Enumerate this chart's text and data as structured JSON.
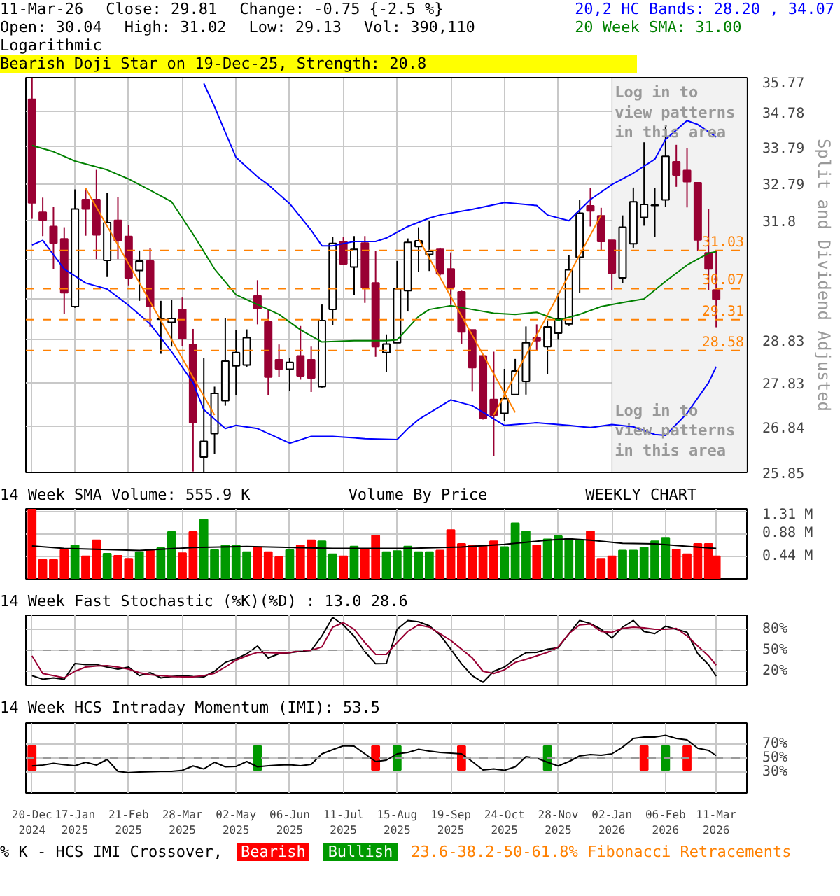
{
  "chart_data": [
    {
      "type": "candlestick",
      "title": "Bearish Doji Star on 19-Dec-25, Strength: 20.8",
      "ylabel": "Split and Dividend Adjusted",
      "annotations": [
        "11-Mar-26",
        "Close: 29.81",
        "Change: -0.75 {-2.5 %}",
        "Open: 30.04",
        "High: 31.02",
        "Low: 29.13",
        "Vol: 390,110",
        "Logarithmic",
        {
          "text": "Log in to view patterns in this area",
          "x": "2026-01-02",
          "y": 35.6
        },
        {
          "text": "Log in to view patterns in this area",
          "x": "2026-01-02",
          "y": 27.4
        }
      ],
      "x": [
        "2024-12-20",
        "2024-12-27",
        "2025-01-03",
        "2025-01-10",
        "2025-01-17",
        "2025-01-24",
        "2025-01-31",
        "2025-02-07",
        "2025-02-14",
        "2025-02-21",
        "2025-02-28",
        "2025-03-07",
        "2025-03-14",
        "2025-03-21",
        "2025-03-28",
        "2025-04-04",
        "2025-04-11",
        "2025-04-18",
        "2025-04-25",
        "2025-05-02",
        "2025-05-09",
        "2025-05-16",
        "2025-05-23",
        "2025-05-30",
        "2025-06-06",
        "2025-06-13",
        "2025-06-20",
        "2025-06-27",
        "2025-07-04",
        "2025-07-11",
        "2025-07-18",
        "2025-07-25",
        "2025-08-01",
        "2025-08-08",
        "2025-08-15",
        "2025-08-22",
        "2025-08-29",
        "2025-09-05",
        "2025-09-12",
        "2025-09-19",
        "2025-09-26",
        "2025-10-03",
        "2025-10-10",
        "2025-10-17",
        "2025-10-24",
        "2025-10-31",
        "2025-11-07",
        "2025-11-14",
        "2025-11-21",
        "2025-11-28",
        "2025-12-05",
        "2025-12-12",
        "2025-12-19",
        "2025-12-26",
        "2026-01-02",
        "2026-01-09",
        "2026-01-16",
        "2026-01-23",
        "2026-01-30",
        "2026-02-06",
        "2026-02-13",
        "2026-02-20",
        "2026-02-27",
        "2026-03-06",
        "2026-03-11"
      ],
      "ohlc": [
        [
          35.14,
          35.76,
          31.85,
          32.27
        ],
        [
          32.02,
          32.41,
          31.4,
          31.82
        ],
        [
          31.65,
          32.16,
          30.56,
          31.22
        ],
        [
          31.33,
          31.63,
          29.46,
          29.97
        ],
        [
          29.63,
          32.63,
          29.6,
          32.11
        ],
        [
          32.36,
          32.66,
          31.41,
          32.11
        ],
        [
          32.36,
          33.16,
          30.81,
          31.43
        ],
        [
          30.78,
          32.53,
          30.36,
          31.75
        ],
        [
          31.81,
          32.43,
          30.81,
          31.28
        ],
        [
          31.39,
          31.69,
          30.15,
          30.34
        ],
        [
          30.52,
          31.03,
          29.77,
          30.76
        ],
        [
          30.76,
          31.09,
          29.14,
          29.63
        ],
        [
          29.32,
          29.77,
          28.5,
          29.33
        ],
        [
          29.25,
          29.79,
          28.67,
          29.34
        ],
        [
          29.56,
          29.85,
          28.69,
          28.86
        ],
        [
          28.72,
          29.09,
          25.87,
          26.93
        ],
        [
          26.18,
          28.4,
          25.85,
          26.52
        ],
        [
          26.69,
          27.74,
          26.24,
          27.59
        ],
        [
          27.42,
          29.35,
          27.31,
          28.33
        ],
        [
          28.22,
          29.07,
          27.55,
          28.53
        ],
        [
          28.24,
          29.08,
          28.2,
          28.88
        ],
        [
          29.89,
          30.28,
          29.2,
          29.58
        ],
        [
          29.26,
          29.56,
          27.55,
          27.96
        ],
        [
          28.36,
          28.72,
          27.96,
          28.15
        ],
        [
          28.14,
          28.4,
          27.65,
          28.3
        ],
        [
          28.45,
          29.16,
          27.9,
          27.99
        ],
        [
          28.36,
          28.67,
          27.62,
          27.94
        ],
        [
          27.74,
          29.68,
          27.72,
          29.29
        ],
        [
          29.56,
          31.37,
          29.18,
          31.21
        ],
        [
          31.26,
          31.37,
          30.66,
          30.69
        ],
        [
          30.61,
          31.4,
          29.92,
          31.06
        ],
        [
          31.22,
          31.4,
          29.72,
          30.1
        ],
        [
          30.21,
          31.01,
          28.43,
          28.67
        ],
        [
          28.53,
          28.96,
          28.07,
          28.73
        ],
        [
          28.76,
          30.76,
          28.76,
          30.07
        ],
        [
          30.02,
          31.34,
          29.51,
          31.24
        ],
        [
          31.13,
          31.63,
          30.48,
          31.28
        ],
        [
          30.93,
          31.8,
          30.51,
          31.01
        ],
        [
          31.06,
          31.1,
          30.4,
          30.44
        ],
        [
          30.56,
          30.98,
          29.67,
          30.11
        ],
        [
          29.99,
          30.02,
          28.74,
          29.02
        ],
        [
          29.07,
          29.07,
          27.63,
          28.18
        ],
        [
          28.45,
          28.48,
          27.0,
          27.03
        ],
        [
          27.45,
          28.55,
          26.2,
          27.1
        ],
        [
          27.14,
          28.15,
          26.97,
          27.47
        ],
        [
          27.56,
          28.38,
          27.56,
          28.1
        ],
        [
          27.86,
          29.15,
          27.56,
          28.76
        ],
        [
          28.88,
          29.2,
          28.58,
          28.81
        ],
        [
          28.67,
          29.3,
          28.03,
          29.14
        ],
        [
          28.99,
          29.96,
          28.83,
          29.33
        ],
        [
          29.21,
          30.91,
          29.16,
          30.54
        ],
        [
          30.86,
          32.36,
          29.97,
          32.0
        ],
        [
          32.19,
          32.66,
          31.65,
          32.06
        ],
        [
          31.93,
          32.14,
          31.01,
          31.26
        ],
        [
          31.29,
          31.29,
          30.04,
          30.46
        ],
        [
          30.34,
          31.94,
          30.21,
          31.63
        ],
        [
          31.2,
          32.68,
          31.1,
          32.3
        ],
        [
          31.89,
          33.92,
          31.67,
          32.23
        ],
        [
          32.2,
          32.66,
          31.37,
          32.21
        ],
        [
          32.35,
          34.34,
          32.17,
          33.53
        ],
        [
          33.38,
          33.85,
          32.7,
          33.02
        ],
        [
          33.14,
          33.75,
          32.15,
          32.84
        ],
        [
          32.81,
          32.81,
          31.01,
          31.3
        ],
        [
          30.97,
          32.11,
          30.04,
          30.56
        ],
        [
          30.04,
          31.02,
          29.13,
          29.81
        ]
      ],
      "series": [
        {
          "type": "line",
          "name": "20,2 HC Bands: 28.20 , 34.07",
          "color": "#0000ff",
          "x": [
            "2025-04-11",
            "2025-04-18",
            "2025-04-25",
            "2025-05-02",
            "2025-05-16",
            "2025-05-23",
            "2025-06-06",
            "2025-06-20",
            "2025-06-27",
            "2025-07-04",
            "2025-07-18",
            "2025-08-01",
            "2025-08-08",
            "2025-08-22",
            "2025-09-05",
            "2025-09-12",
            "2025-10-03",
            "2025-10-24",
            "2025-11-14",
            "2025-11-21",
            "2025-12-05",
            "2025-12-19",
            "2026-01-02",
            "2026-01-16",
            "2026-01-30",
            "2026-02-06",
            "2026-02-20",
            "2026-02-27",
            "2026-03-11"
          ],
          "values": [
            35.6,
            34.93,
            34.2,
            33.5,
            32.97,
            32.76,
            32.25,
            31.55,
            31.15,
            31.15,
            31.26,
            31.26,
            31.35,
            31.65,
            31.87,
            31.95,
            32.1,
            32.28,
            32.2,
            31.95,
            31.8,
            32.36,
            32.76,
            33.07,
            33.45,
            34.0,
            34.53,
            34.42,
            34.07
          ]
        },
        {
          "type": "line",
          "color": "#0000ff",
          "x": [
            "2024-12-20",
            "2024-12-27",
            "2025-01-10",
            "2025-01-24",
            "2025-02-07",
            "2025-02-21",
            "2025-03-07",
            "2025-03-21",
            "2025-04-04",
            "2025-04-11",
            "2025-04-25",
            "2025-05-02",
            "2025-05-16",
            "2025-06-06",
            "2025-06-20",
            "2025-07-04",
            "2025-07-25",
            "2025-08-15",
            "2025-08-22",
            "2025-08-29",
            "2025-09-19",
            "2025-10-03",
            "2025-10-24",
            "2025-11-14",
            "2025-12-05",
            "2025-12-19",
            "2026-01-02",
            "2026-01-16",
            "2026-01-30",
            "2026-02-06",
            "2026-02-20",
            "2026-03-06",
            "2026-03-11"
          ],
          "values": [
            31.17,
            31.29,
            30.56,
            30.21,
            30.06,
            29.66,
            29.21,
            28.55,
            27.83,
            27.22,
            26.8,
            26.87,
            26.8,
            26.48,
            26.63,
            26.63,
            26.58,
            26.56,
            26.8,
            27.0,
            27.44,
            27.31,
            26.87,
            26.93,
            26.87,
            26.82,
            26.89,
            26.84,
            26.67,
            26.65,
            27.14,
            27.83,
            28.2
          ]
        },
        {
          "type": "line",
          "name": "20 Week SMA: 31.00",
          "color": "#008000",
          "x": [
            "2024-12-20",
            "2025-01-03",
            "2025-01-17",
            "2025-02-07",
            "2025-02-21",
            "2025-03-07",
            "2025-03-21",
            "2025-04-04",
            "2025-04-18",
            "2025-05-02",
            "2025-05-16",
            "2025-05-30",
            "2025-06-13",
            "2025-06-27",
            "2025-07-18",
            "2025-08-08",
            "2025-08-15",
            "2025-08-29",
            "2025-09-05",
            "2025-09-19",
            "2025-10-03",
            "2025-10-17",
            "2025-10-31",
            "2025-11-14",
            "2025-11-28",
            "2025-12-12",
            "2025-12-26",
            "2026-01-09",
            "2026-01-23",
            "2026-02-06",
            "2026-02-20",
            "2026-03-06",
            "2026-03-11"
          ],
          "values": [
            33.83,
            33.66,
            33.4,
            33.16,
            32.91,
            32.61,
            32.3,
            31.45,
            30.56,
            29.92,
            29.68,
            29.44,
            29.07,
            28.78,
            28.81,
            28.81,
            28.83,
            29.39,
            29.56,
            29.65,
            29.56,
            29.47,
            29.44,
            29.49,
            29.3,
            29.44,
            29.63,
            29.73,
            29.82,
            30.25,
            30.66,
            30.96,
            31.0
          ]
        },
        {
          "type": "line",
          "color": "#ff8000",
          "x": [
            "2025-01-24",
            "2025-04-18"
          ],
          "values": [
            32.66,
            27.1
          ]
        },
        {
          "type": "line",
          "color": "#ff8000",
          "x": [
            "2025-08-29",
            "2025-10-31"
          ],
          "values": [
            31.33,
            27.16
          ]
        },
        {
          "type": "line",
          "color": "#ff8000",
          "x": [
            "2025-10-17",
            "2025-12-26"
          ],
          "values": [
            27.1,
            31.95
          ]
        }
      ],
      "ref_lines": [
        {
          "axis": "y",
          "value": 31.03,
          "label": "31.03",
          "color": "#ff8000",
          "line_style": "dashed"
        },
        {
          "axis": "y",
          "value": 30.07,
          "label": "30.07",
          "color": "#ff8000",
          "line_style": "dashed"
        },
        {
          "axis": "y",
          "value": 29.31,
          "label": "29.31",
          "color": "#ff8000",
          "line_style": "dashed"
        },
        {
          "axis": "y",
          "value": 28.58,
          "label": "28.58",
          "color": "#ff8000",
          "line_style": "dashed"
        }
      ],
      "bands": [
        {
          "axis": "x",
          "from": "2026-01-02",
          "to": "2026-03-31",
          "color": "#f2f2f2"
        }
      ],
      "xlim": [
        "2024-12-16",
        "2026-03-31"
      ],
      "xticks": [
        {
          "value": "2024-12-20",
          "label": null
        },
        {
          "value": "2025-01-17",
          "label": null
        },
        {
          "value": "2025-02-21",
          "label": null
        },
        {
          "value": "2025-03-28",
          "label": null
        },
        {
          "value": "2025-05-02",
          "label": null
        },
        {
          "value": "2025-06-06",
          "label": null
        },
        {
          "value": "2025-07-11",
          "label": null
        },
        {
          "value": "2025-08-15",
          "label": null
        },
        {
          "value": "2025-09-19",
          "label": null
        },
        {
          "value": "2025-10-24",
          "label": null
        },
        {
          "value": "2025-11-28",
          "label": null
        },
        {
          "value": "2026-01-02",
          "label": null
        },
        {
          "value": "2026-02-06",
          "label": null
        },
        {
          "value": "2026-03-11",
          "label": null
        }
      ],
      "ylim": [
        25.85,
        35.77
      ],
      "yticks": [
        25.85,
        26.84,
        27.83,
        28.83,
        {
          "value": 29.82,
          "label": null
        },
        {
          "value": 30.81,
          "label": null
        },
        31.8,
        32.79,
        33.79,
        34.78,
        35.77
      ],
      "log": true,
      "grid": true,
      "legend": "top right",
      "tick_labels": "y"
    },
    {
      "type": "bar",
      "title": "14 Week SMA Volume: 555.9 K",
      "annotations": [
        "Volume By Price",
        "WEEKLY CHART"
      ],
      "x": [
        "2024-12-20",
        "2024-12-27",
        "2025-01-03",
        "2025-01-10",
        "2025-01-17",
        "2025-01-24",
        "2025-01-31",
        "2025-02-07",
        "2025-02-14",
        "2025-02-21",
        "2025-02-28",
        "2025-03-07",
        "2025-03-14",
        "2025-03-21",
        "2025-03-28",
        "2025-04-04",
        "2025-04-11",
        "2025-04-18",
        "2025-04-25",
        "2025-05-02",
        "2025-05-09",
        "2025-05-16",
        "2025-05-23",
        "2025-05-30",
        "2025-06-06",
        "2025-06-13",
        "2025-06-20",
        "2025-06-27",
        "2025-07-04",
        "2025-07-11",
        "2025-07-18",
        "2025-07-25",
        "2025-08-01",
        "2025-08-08",
        "2025-08-15",
        "2025-08-22",
        "2025-08-29",
        "2025-09-05",
        "2025-09-12",
        "2025-09-19",
        "2025-09-26",
        "2025-10-03",
        "2025-10-10",
        "2025-10-17",
        "2025-10-24",
        "2025-10-31",
        "2025-11-07",
        "2025-11-14",
        "2025-11-21",
        "2025-11-28",
        "2025-12-05",
        "2025-12-12",
        "2025-12-19",
        "2025-12-26",
        "2026-01-02",
        "2026-01-09",
        "2026-01-16",
        "2026-01-23",
        "2026-01-30",
        "2026-02-06",
        "2026-02-13",
        "2026-02-20",
        "2026-02-27",
        "2026-03-06",
        "2026-03-11"
      ],
      "series": [
        {
          "type": "bar",
          "values": [
            1.35,
            0.37,
            0.37,
            0.56,
            0.65,
            0.44,
            0.75,
            0.49,
            0.45,
            0.39,
            0.52,
            0.56,
            0.6,
            0.91,
            0.5,
            0.91,
            1.15,
            0.56,
            0.65,
            0.65,
            0.52,
            0.61,
            0.52,
            0.42,
            0.56,
            0.65,
            0.75,
            0.73,
            0.48,
            0.44,
            0.63,
            0.58,
            0.84,
            0.52,
            0.54,
            0.63,
            0.52,
            0.52,
            0.55,
            0.95,
            0.68,
            0.65,
            0.65,
            0.73,
            0.62,
            1.08,
            0.92,
            0.65,
            0.77,
            0.83,
            0.79,
            0.75,
            0.92,
            0.39,
            0.44,
            0.55,
            0.55,
            0.61,
            0.73,
            0.8,
            0.57,
            0.48,
            0.68,
            0.68,
            0.44
          ],
          "colors": [
            "#ff0000",
            "#ff0000",
            "#ff0000",
            "#ff0000",
            "#009900",
            "#ff0000",
            "#ff0000",
            "#009900",
            "#ff0000",
            "#ff0000",
            "#009900",
            "#ff0000",
            "#009900",
            "#009900",
            "#ff0000",
            "#ff0000",
            "#009900",
            "#009900",
            "#009900",
            "#009900",
            "#009900",
            "#ff0000",
            "#ff0000",
            "#ff0000",
            "#009900",
            "#ff0000",
            "#ff0000",
            "#009900",
            "#009900",
            "#ff0000",
            "#009900",
            "#ff0000",
            "#ff0000",
            "#009900",
            "#009900",
            "#009900",
            "#009900",
            "#009900",
            "#ff0000",
            "#ff0000",
            "#ff0000",
            "#ff0000",
            "#ff0000",
            "#ff0000",
            "#009900",
            "#009900",
            "#009900",
            "#ff0000",
            "#009900",
            "#009900",
            "#009900",
            "#009900",
            "#ff0000",
            "#ff0000",
            "#ff0000",
            "#009900",
            "#009900",
            "#009900",
            "#009900",
            "#009900",
            "#ff0000",
            "#ff0000",
            "#ff0000",
            "#ff0000",
            "#ff0000"
          ]
        },
        {
          "type": "line",
          "color": "#000000",
          "x": [
            "2024-12-20",
            "2025-01-10",
            "2025-02-28",
            "2025-04-04",
            "2025-05-09",
            "2025-07-04",
            "2025-08-22",
            "2025-09-26",
            "2025-10-24",
            "2025-11-21",
            "2025-12-05",
            "2025-12-19",
            "2026-01-09",
            "2026-01-30",
            "2026-03-11"
          ],
          "values": [
            0.64,
            0.59,
            0.55,
            0.61,
            0.63,
            0.59,
            0.59,
            0.62,
            0.67,
            0.75,
            0.78,
            0.75,
            0.69,
            0.68,
            0.59
          ]
        }
      ],
      "xlim": [
        "2024-12-16",
        "2026-03-31"
      ],
      "xticks": [
        {
          "value": "2024-12-20",
          "label": null
        },
        {
          "value": "2025-01-17",
          "label": null
        },
        {
          "value": "2025-02-21",
          "label": null
        },
        {
          "value": "2025-03-28",
          "label": null
        },
        {
          "value": "2025-05-02",
          "label": null
        },
        {
          "value": "2025-06-06",
          "label": null
        },
        {
          "value": "2025-07-11",
          "label": null
        },
        {
          "value": "2025-08-15",
          "label": null
        },
        {
          "value": "2025-09-19",
          "label": null
        },
        {
          "value": "2025-10-24",
          "label": null
        },
        {
          "value": "2025-11-28",
          "label": null
        },
        {
          "value": "2026-01-02",
          "label": null
        },
        {
          "value": "2026-02-06",
          "label": null
        },
        {
          "value": "2026-03-11",
          "label": null
        }
      ],
      "ylim": [
        0,
        1.36
      ],
      "yticks": [
        {
          "value": 0.44,
          "label": "0.44 M"
        },
        {
          "value": 0.88,
          "label": "0.88 M"
        },
        {
          "value": 1.31,
          "label": "1.31 M"
        }
      ],
      "grid": true,
      "tick_labels": "y"
    },
    {
      "type": "line",
      "title": "14 Week Fast Stochastic (%K)(%D) : 13.0 28.6",
      "x": [
        "2024-12-20",
        "2024-12-27",
        "2025-01-03",
        "2025-01-10",
        "2025-01-17",
        "2025-01-24",
        "2025-01-31",
        "2025-02-07",
        "2025-02-14",
        "2025-02-21",
        "2025-02-28",
        "2025-03-07",
        "2025-03-14",
        "2025-03-21",
        "2025-03-28",
        "2025-04-04",
        "2025-04-11",
        "2025-04-18",
        "2025-04-25",
        "2025-05-02",
        "2025-05-09",
        "2025-05-16",
        "2025-05-23",
        "2025-05-30",
        "2025-06-06",
        "2025-06-13",
        "2025-06-20",
        "2025-06-27",
        "2025-07-04",
        "2025-07-11",
        "2025-07-18",
        "2025-07-25",
        "2025-08-01",
        "2025-08-08",
        "2025-08-15",
        "2025-08-22",
        "2025-08-29",
        "2025-09-05",
        "2025-09-12",
        "2025-09-19",
        "2025-09-26",
        "2025-10-03",
        "2025-10-10",
        "2025-10-17",
        "2025-10-24",
        "2025-10-31",
        "2025-11-07",
        "2025-11-14",
        "2025-11-21",
        "2025-11-28",
        "2025-12-05",
        "2025-12-12",
        "2025-12-19",
        "2025-12-26",
        "2026-01-02",
        "2026-01-09",
        "2026-01-16",
        "2026-01-23",
        "2026-01-30",
        "2026-02-06",
        "2026-02-13",
        "2026-02-20",
        "2026-02-27",
        "2026-03-06",
        "2026-03-11"
      ],
      "series": [
        {
          "color": "#000000",
          "values": [
            13.7,
            8.6,
            10.5,
            8.6,
            31,
            29.5,
            29.5,
            26,
            23,
            26,
            13.7,
            18,
            10.5,
            12.4,
            13.7,
            12.4,
            12,
            20,
            32.6,
            37.7,
            45,
            56,
            39,
            45,
            46.5,
            48.4,
            49.7,
            70.5,
            97,
            86,
            70,
            48,
            30.7,
            31,
            80,
            92.6,
            90.7,
            85,
            71.8,
            51.6,
            30.7,
            13.7,
            4.2,
            20,
            26,
            37.7,
            46.5,
            47,
            51.6,
            53.5,
            73.7,
            92.6,
            88.2,
            80,
            67.4,
            83,
            92.6,
            76.8,
            73.7,
            84.4,
            80,
            75.6,
            45,
            29.5,
            13.0
          ]
        },
        {
          "color": "#990033",
          "values": [
            42,
            16.8,
            13.7,
            10.5,
            20,
            26,
            27.6,
            28,
            26,
            23,
            18,
            15,
            13.7,
            12.4,
            12,
            12,
            13.7,
            17,
            26,
            35.8,
            42,
            47,
            46.5,
            46,
            46.5,
            49.7,
            49.7,
            54.7,
            83,
            89.5,
            80,
            61,
            44,
            44,
            61,
            77,
            86.3,
            83,
            73.7,
            64,
            51.6,
            39,
            20,
            16.8,
            22,
            32.6,
            37,
            42,
            47,
            54.7,
            73.7,
            86.3,
            87.6,
            76.8,
            75.6,
            81.3,
            83,
            82,
            80,
            80,
            81.3,
            70.5,
            56,
            42,
            28.6
          ]
        }
      ],
      "ref_lines": [
        {
          "axis": "y",
          "value": 50,
          "color": "#999999",
          "line_style": "dashed"
        }
      ],
      "xlim": [
        "2024-12-16",
        "2026-03-31"
      ],
      "xticks": [
        {
          "value": "2024-12-20",
          "label": null
        },
        {
          "value": "2025-01-17",
          "label": null
        },
        {
          "value": "2025-02-21",
          "label": null
        },
        {
          "value": "2025-03-28",
          "label": null
        },
        {
          "value": "2025-05-02",
          "label": null
        },
        {
          "value": "2025-06-06",
          "label": null
        },
        {
          "value": "2025-07-11",
          "label": null
        },
        {
          "value": "2025-08-15",
          "label": null
        },
        {
          "value": "2025-09-19",
          "label": null
        },
        {
          "value": "2025-10-24",
          "label": null
        },
        {
          "value": "2025-11-28",
          "label": null
        },
        {
          "value": "2026-01-02",
          "label": null
        },
        {
          "value": "2026-02-06",
          "label": null
        },
        {
          "value": "2026-03-11",
          "label": null
        }
      ],
      "ylim": [
        0,
        100
      ],
      "yticks": [
        {
          "value": 20,
          "label": "20%"
        },
        {
          "value": 50,
          "label": "50%"
        },
        {
          "value": 80,
          "label": "80%"
        }
      ],
      "grid": true,
      "tick_labels": "y"
    },
    {
      "type": "line",
      "title": "14 Week HCS Intraday Momentum (IMI): 53.5",
      "annotations": [
        "% K - HCS IMI Crossover,",
        "23.6-38.2-50-61.8% Fibonacci Retracements"
      ],
      "x": [
        "2024-12-20",
        "2024-12-27",
        "2025-01-03",
        "2025-01-10",
        "2025-01-17",
        "2025-01-24",
        "2025-01-31",
        "2025-02-07",
        "2025-02-14",
        "2025-02-21",
        "2025-02-28",
        "2025-03-07",
        "2025-03-14",
        "2025-03-21",
        "2025-03-28",
        "2025-04-04",
        "2025-04-11",
        "2025-04-18",
        "2025-04-25",
        "2025-05-02",
        "2025-05-09",
        "2025-05-16",
        "2025-05-23",
        "2025-05-30",
        "2025-06-06",
        "2025-06-13",
        "2025-06-20",
        "2025-06-27",
        "2025-07-04",
        "2025-07-11",
        "2025-07-18",
        "2025-07-25",
        "2025-08-01",
        "2025-08-08",
        "2025-08-15",
        "2025-08-22",
        "2025-08-29",
        "2025-09-05",
        "2025-09-12",
        "2025-09-19",
        "2025-09-26",
        "2025-10-03",
        "2025-10-10",
        "2025-10-17",
        "2025-10-24",
        "2025-10-31",
        "2025-11-07",
        "2025-11-14",
        "2025-11-21",
        "2025-11-28",
        "2025-12-05",
        "2025-12-12",
        "2025-12-19",
        "2025-12-26",
        "2026-01-02",
        "2026-01-09",
        "2026-01-16",
        "2026-01-23",
        "2026-01-30",
        "2026-02-06",
        "2026-02-13",
        "2026-02-20",
        "2026-02-27",
        "2026-03-06",
        "2026-03-11"
      ],
      "series": [
        {
          "type": "bar",
          "name": "Bearish",
          "color": "#ff0000",
          "x": [
            "2024-12-20",
            "2025-08-01",
            "2025-09-26",
            "2026-01-23",
            "2026-02-20"
          ],
          "values": [
            34,
            34,
            34,
            34,
            34
          ],
          "base": [
            33,
            33,
            33,
            33,
            33
          ]
        },
        {
          "type": "bar",
          "name": "Bullish",
          "color": "#009900",
          "x": [
            "2025-05-16",
            "2025-08-15",
            "2025-11-21",
            "2026-02-06"
          ],
          "values": [
            34,
            34,
            34,
            34
          ],
          "base": [
            33,
            33,
            33,
            33
          ]
        },
        {
          "type": "line",
          "color": "#000000",
          "values": [
            38.8,
            40,
            42.5,
            40.6,
            39,
            44,
            40,
            48,
            31,
            29,
            30,
            30.5,
            31,
            31,
            32.5,
            38.8,
            34.4,
            44,
            37.5,
            38,
            45,
            37.5,
            39,
            40,
            40.6,
            39,
            41,
            56,
            62,
            67.5,
            67,
            56,
            45,
            47,
            56,
            58,
            62.5,
            60,
            58,
            57,
            56,
            45,
            33,
            34.4,
            32.5,
            37.5,
            52,
            50,
            44,
            38.8,
            45,
            53,
            55,
            54,
            56,
            65.6,
            78,
            80,
            80,
            82.5,
            78,
            76,
            64,
            61,
            53.5
          ]
        }
      ],
      "ref_lines": [
        {
          "axis": "y",
          "value": 50,
          "color": "#999999",
          "line_style": "dashed"
        }
      ],
      "xlim": [
        "2024-12-16",
        "2026-03-31"
      ],
      "xticks": [
        {
          "value": "2024-12-20",
          "label": "20-Dec\n2024"
        },
        {
          "value": "2025-01-17",
          "label": "17-Jan\n2025"
        },
        {
          "value": "2025-02-21",
          "label": "21-Feb\n2025"
        },
        {
          "value": "2025-03-28",
          "label": "28-Mar\n2025"
        },
        {
          "value": "2025-05-02",
          "label": "02-May\n2025"
        },
        {
          "value": "2025-06-06",
          "label": "06-Jun\n2025"
        },
        {
          "value": "2025-07-11",
          "label": "11-Jul\n2025"
        },
        {
          "value": "2025-08-15",
          "label": "15-Aug\n2025"
        },
        {
          "value": "2025-09-19",
          "label": "19-Sep\n2025"
        },
        {
          "value": "2025-10-24",
          "label": "24-Oct\n2025"
        },
        {
          "value": "2025-11-28",
          "label": "28-Nov\n2025"
        },
        {
          "value": "2026-01-02",
          "label": "02-Jan\n2026"
        },
        {
          "value": "2026-02-06",
          "label": "06-Feb\n2026"
        },
        {
          "value": "2026-03-11",
          "label": "11-Mar\n2026"
        }
      ],
      "ylim": [
        0,
        100
      ],
      "yticks": [
        {
          "value": 30,
          "label": "30%"
        },
        {
          "value": 50,
          "label": "50%"
        },
        {
          "value": 70,
          "label": "70%"
        }
      ],
      "grid": true,
      "legend": "bottom"
    }
  ]
}
